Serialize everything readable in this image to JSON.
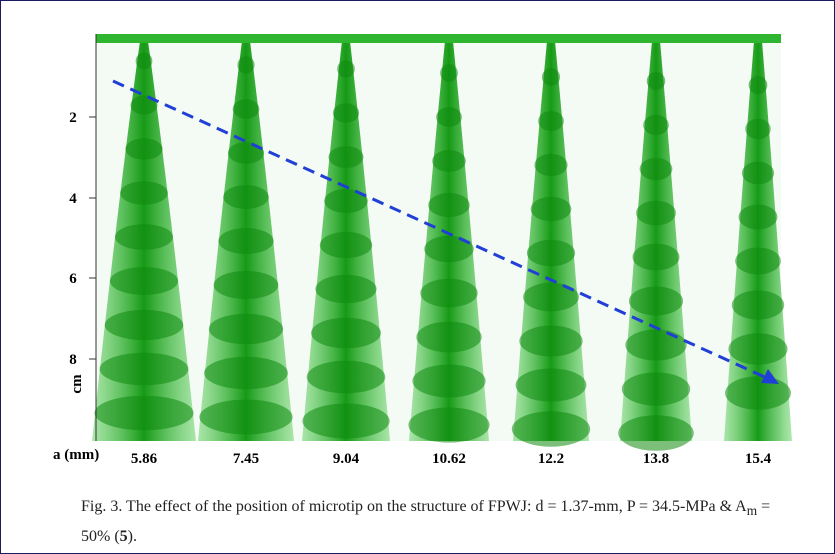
{
  "figure": {
    "y_axis": {
      "label": "cm",
      "ticks": [
        "2",
        "4",
        "6",
        "8"
      ]
    },
    "x_axis": {
      "label": "a (mm)",
      "ticks": [
        "5.86",
        "7.45",
        "9.04",
        "10.62",
        "12.2",
        "13.8",
        "15.4"
      ]
    },
    "caption": {
      "part1": "Fig. 3. The effect of the position of microtip on the structure of FPWJ: d = 1.37-mm, P = 34.5-MPa & A",
      "subscript": "m",
      "part2": " = 50% (",
      "bold": "5",
      "part3": ")."
    }
  }
}
